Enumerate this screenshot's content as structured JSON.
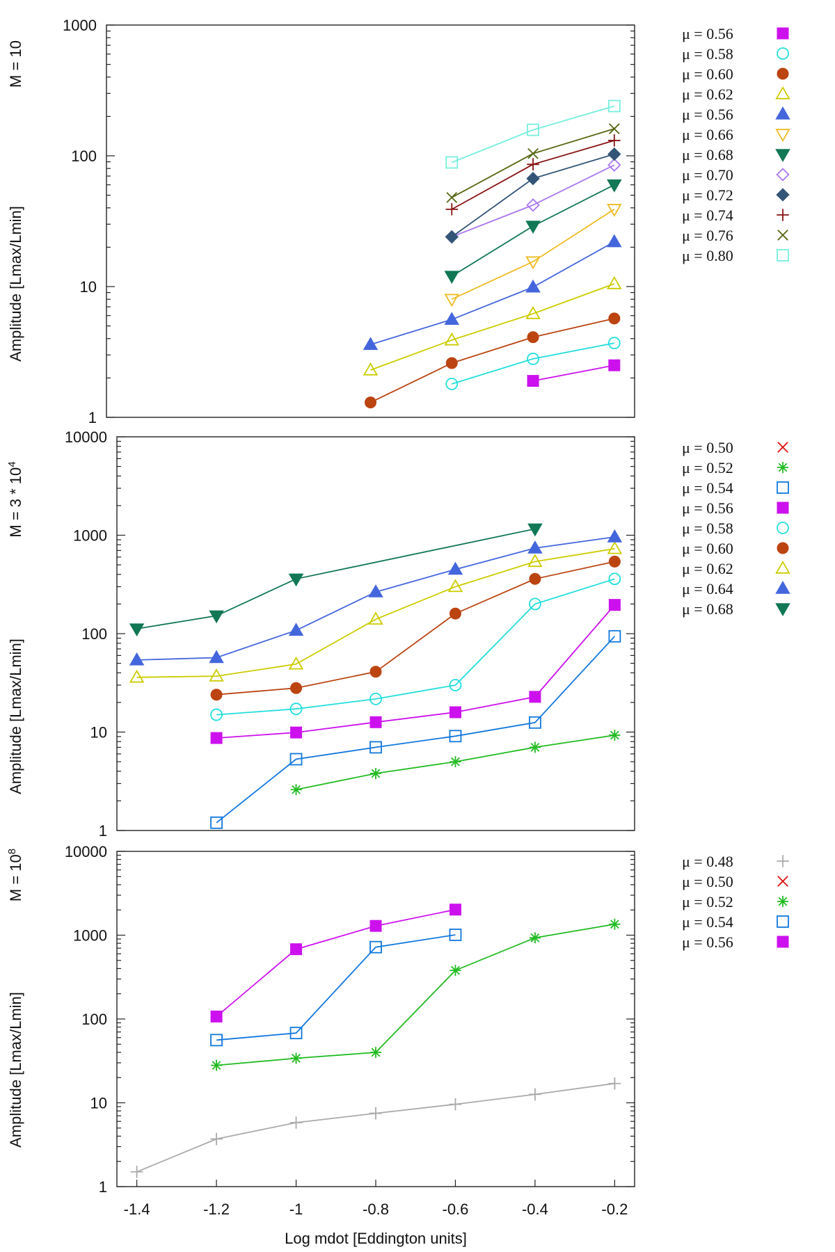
{
  "figure": {
    "xlabel": "Log mdot [Eddington units]",
    "xticks": [
      "-1.4",
      "-1.2",
      "-1",
      "-0.8",
      "-0.6",
      "-0.4",
      "-0.2"
    ]
  },
  "chart_data": [
    {
      "type": "line",
      "panel_label": "M = 10",
      "ylabel": "Amplitude [Lmax/Lmin]",
      "yscale": "log",
      "ylim": [
        1,
        1000
      ],
      "xlim": [
        -1.45,
        -0.15
      ],
      "ytick_values": [
        1,
        10,
        100,
        1000
      ],
      "ytick_labels": [
        "1",
        "10",
        "100",
        "1000"
      ],
      "series": [
        {
          "name": "μ = 0.56",
          "marker": "square-filled",
          "color": "#cc11ee",
          "x": [
            -0.4,
            -0.2
          ],
          "y": [
            1.9,
            2.5
          ]
        },
        {
          "name": "μ = 0.58",
          "marker": "circle-open",
          "color": "#22dddd",
          "x": [
            -0.6,
            -0.4,
            -0.2
          ],
          "y": [
            1.8,
            2.8,
            3.7
          ]
        },
        {
          "name": "μ = 0.60",
          "marker": "circle-filled",
          "color": "#bb4411",
          "x": [
            -0.8,
            -0.6,
            -0.4,
            -0.2
          ],
          "y": [
            1.3,
            2.6,
            4.1,
            5.7
          ]
        },
        {
          "name": "μ = 0.62",
          "marker": "triangle-up-open",
          "color": "#cccc00",
          "x": [
            -0.8,
            -0.6,
            -0.4,
            -0.2
          ],
          "y": [
            2.3,
            3.9,
            6.2,
            10.5
          ]
        },
        {
          "name": "μ = 0.56",
          "marker": "triangle-up-filled",
          "color": "#4466dd",
          "x": [
            -0.8,
            -0.6,
            -0.4,
            -0.2
          ],
          "y": [
            3.6,
            5.6,
            9.9,
            22
          ]
        },
        {
          "name": "μ = 0.66",
          "marker": "triangle-down-open",
          "color": "#eebb22",
          "x": [
            -0.6,
            -0.4,
            -0.2
          ],
          "y": [
            8,
            15.5,
            39
          ]
        },
        {
          "name": "μ = 0.68",
          "marker": "triangle-down-filled",
          "color": "#117755",
          "x": [
            -0.6,
            -0.4,
            -0.2
          ],
          "y": [
            12,
            29,
            60
          ]
        },
        {
          "name": "μ = 0.70",
          "marker": "diamond-open",
          "color": "#aa77ee",
          "x": [
            -0.6,
            -0.4,
            -0.2
          ],
          "y": [
            24,
            42,
            85
          ]
        },
        {
          "name": "μ = 0.72",
          "marker": "diamond-filled",
          "color": "#335577",
          "x": [
            -0.6,
            -0.4,
            -0.2
          ],
          "y": [
            24,
            67,
            103
          ]
        },
        {
          "name": "μ = 0.74",
          "marker": "plus",
          "color": "#881111",
          "x": [
            -0.6,
            -0.4,
            -0.2
          ],
          "y": [
            39,
            86,
            131
          ]
        },
        {
          "name": "μ = 0.76",
          "marker": "cross",
          "color": "#556611",
          "x": [
            -0.6,
            -0.4,
            -0.2
          ],
          "y": [
            48,
            104,
            161
          ]
        },
        {
          "name": "μ = 0.80",
          "marker": "square-open",
          "color": "#77eedd",
          "x": [
            -0.6,
            -0.4,
            -0.2
          ],
          "y": [
            89,
            158,
            240
          ]
        }
      ]
    },
    {
      "type": "line",
      "panel_label": "M = 3 * 10",
      "panel_label_sup": "4",
      "ylabel": "Amplitude [Lmax/Lmin]",
      "yscale": "log",
      "ylim": [
        1,
        10000
      ],
      "xlim": [
        -1.45,
        -0.15
      ],
      "ytick_values": [
        1,
        10,
        100,
        1000,
        10000
      ],
      "ytick_labels": [
        "1",
        "10",
        "100",
        "1000",
        "10000"
      ],
      "series": [
        {
          "name": "μ = 0.50",
          "marker": "cross",
          "color": "#dd1111",
          "x": [],
          "y": []
        },
        {
          "name": "μ = 0.52",
          "marker": "star",
          "color": "#22bb22",
          "x": [
            -1.0,
            -0.8,
            -0.6,
            -0.4,
            -0.2
          ],
          "y": [
            2.6,
            3.8,
            5.0,
            7.0,
            9.3
          ]
        },
        {
          "name": "μ = 0.54",
          "marker": "square-open",
          "color": "#1177dd",
          "x": [
            -1.2,
            -1.0,
            -0.8,
            -0.6,
            -0.4,
            -0.2
          ],
          "y": [
            1.2,
            5.3,
            7.0,
            9.1,
            12.5,
            94
          ]
        },
        {
          "name": "μ = 0.56",
          "marker": "square-filled",
          "color": "#cc11ee",
          "x": [
            -1.2,
            -1.0,
            -0.8,
            -0.6,
            -0.4,
            -0.2
          ],
          "y": [
            8.7,
            9.9,
            12.6,
            15.9,
            22.8,
            196
          ]
        },
        {
          "name": "μ = 0.58",
          "marker": "circle-open",
          "color": "#22dddd",
          "x": [
            -1.2,
            -1.0,
            -0.8,
            -0.6,
            -0.4,
            -0.2
          ],
          "y": [
            15,
            17.2,
            21.7,
            30,
            200,
            360
          ]
        },
        {
          "name": "μ = 0.60",
          "marker": "circle-filled",
          "color": "#bb4411",
          "x": [
            -1.2,
            -1.0,
            -0.8,
            -0.6,
            -0.4,
            -0.2
          ],
          "y": [
            24,
            28,
            41,
            160,
            360,
            540
          ]
        },
        {
          "name": "μ = 0.62",
          "marker": "triangle-up-open",
          "color": "#cccc00",
          "x": [
            -1.4,
            -1.2,
            -1.0,
            -0.8,
            -0.6,
            -0.4,
            -0.2
          ],
          "y": [
            36,
            37,
            49,
            140,
            300,
            540,
            730
          ]
        },
        {
          "name": "μ = 0.64",
          "marker": "triangle-up-filled",
          "color": "#4466dd",
          "x": [
            -1.4,
            -1.2,
            -1.0,
            -0.8,
            -0.6,
            -0.4,
            -0.2
          ],
          "y": [
            54,
            57,
            108,
            265,
            450,
            740,
            960
          ]
        },
        {
          "name": "μ = 0.68",
          "marker": "triangle-down-filled",
          "color": "#117755",
          "x": [
            -1.4,
            -1.2,
            -1.0,
            -0.4
          ],
          "y": [
            112,
            152,
            360,
            1160
          ]
        }
      ]
    },
    {
      "type": "line",
      "panel_label": "M = 10",
      "panel_label_sup": "8",
      "ylabel": "Amplitude [Lmax/Lmin]",
      "yscale": "log",
      "ylim": [
        1,
        10000
      ],
      "xlim": [
        -1.45,
        -0.15
      ],
      "ytick_values": [
        1,
        10,
        100,
        1000,
        10000
      ],
      "ytick_labels": [
        "1",
        "10",
        "100",
        "1000",
        "10000"
      ],
      "series": [
        {
          "name": "μ = 0.48",
          "marker": "plus",
          "color": "#aaaaaa",
          "x": [
            -1.4,
            -1.2,
            -1.0,
            -0.8,
            -0.6,
            -0.4,
            -0.2
          ],
          "y": [
            1.5,
            3.7,
            5.8,
            7.5,
            9.6,
            12.6,
            17
          ]
        },
        {
          "name": "μ = 0.50",
          "marker": "cross",
          "color": "#dd1111",
          "x": [],
          "y": []
        },
        {
          "name": "μ = 0.52",
          "marker": "star",
          "color": "#22bb22",
          "x": [
            -1.2,
            -1.0,
            -0.8,
            -0.6,
            -0.4,
            -0.2
          ],
          "y": [
            28,
            34,
            40,
            380,
            930,
            1350
          ]
        },
        {
          "name": "μ = 0.54",
          "marker": "square-open",
          "color": "#1177dd",
          "x": [
            -1.2,
            -1.0,
            -0.8,
            -0.6
          ],
          "y": [
            56,
            68,
            720,
            1010
          ]
        },
        {
          "name": "μ = 0.56",
          "marker": "square-filled",
          "color": "#cc11ee",
          "x": [
            -1.2,
            -1.0,
            -0.8,
            -0.6
          ],
          "y": [
            107,
            680,
            1290,
            2020
          ]
        }
      ]
    }
  ]
}
